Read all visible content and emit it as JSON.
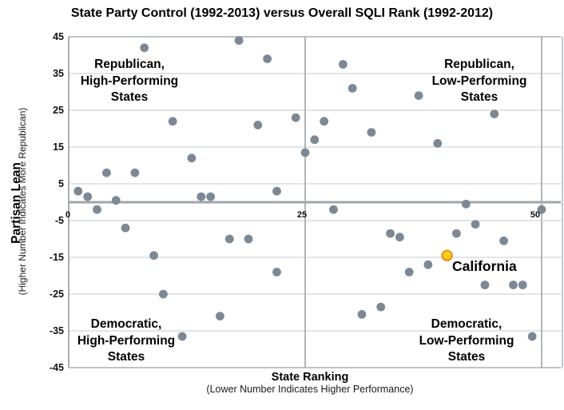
{
  "chart_data": {
    "type": "scatter",
    "title": "State Party Control (1992-2013) versus Overall SQLI Rank (1992-2012)",
    "xlabel": "State Ranking",
    "xlabel_note": "(Lower Number Indicates Higher Performance)",
    "ylabel": "Partisan Lean",
    "ylabel_note": "(Higher Number Indicates More Republican)",
    "xlim": [
      0,
      52
    ],
    "ylim": [
      -45,
      45
    ],
    "x_ticks": [
      0,
      25,
      50
    ],
    "y_ticks": [
      45,
      35,
      25,
      15,
      5,
      -5,
      -15,
      -25,
      -35,
      -45
    ],
    "grid": true,
    "legend": "none",
    "quadrant_labels": [
      {
        "id": "top-left",
        "lines": [
          "Republican,",
          "High-Performing",
          "States"
        ]
      },
      {
        "id": "top-right",
        "lines": [
          "Republican,",
          "Low-Performing",
          "States"
        ]
      },
      {
        "id": "bottom-left",
        "lines": [
          "Democratic,",
          "High-Performing",
          "States"
        ]
      },
      {
        "id": "bottom-right",
        "lines": [
          "Democratic,",
          "Low-Performing",
          "States"
        ]
      }
    ],
    "series": [
      {
        "name": "States",
        "marker": "circle",
        "color": "#7C8995",
        "marker_radius": 5.4,
        "points": [
          [
            1,
            3
          ],
          [
            2,
            1.5
          ],
          [
            3,
            -2
          ],
          [
            4,
            8
          ],
          [
            5,
            0.5
          ],
          [
            6,
            -7
          ],
          [
            7,
            8
          ],
          [
            8,
            42
          ],
          [
            9,
            -14.5
          ],
          [
            10,
            -25
          ],
          [
            11,
            22
          ],
          [
            12,
            -36.5
          ],
          [
            13,
            12
          ],
          [
            14,
            1.5
          ],
          [
            15,
            1.5
          ],
          [
            16,
            -31
          ],
          [
            17,
            -10
          ],
          [
            18,
            44
          ],
          [
            19,
            -10
          ],
          [
            20,
            21
          ],
          [
            21,
            39
          ],
          [
            22,
            3
          ],
          [
            22,
            -19
          ],
          [
            24,
            23
          ],
          [
            25,
            13.5
          ],
          [
            26,
            17
          ],
          [
            27,
            22
          ],
          [
            28,
            -2
          ],
          [
            29,
            37.5
          ],
          [
            30,
            31
          ],
          [
            31,
            -30.5
          ],
          [
            32,
            19
          ],
          [
            33,
            -28.5
          ],
          [
            34,
            -8.5
          ],
          [
            35,
            -9.5
          ],
          [
            36,
            -19
          ],
          [
            37,
            29
          ],
          [
            38,
            -17
          ],
          [
            39,
            16
          ],
          [
            41,
            -8.5
          ],
          [
            42,
            -0.5
          ],
          [
            43,
            -6
          ],
          [
            44,
            -22.5
          ],
          [
            45,
            24
          ],
          [
            46,
            -10.5
          ],
          [
            47,
            -22.5
          ],
          [
            48,
            -22.5
          ],
          [
            49,
            -36.5
          ],
          [
            50,
            -2
          ]
        ]
      },
      {
        "name": "California",
        "marker": "circle-highlight",
        "color": "#F28E1D",
        "color_inner": "#FFD21F",
        "marker_radius": 6.5,
        "points": [
          [
            40,
            -14.5
          ]
        ]
      }
    ],
    "annotation": {
      "text": "California",
      "x": 40,
      "y": -14.5
    }
  },
  "colors": {
    "background": "#FFFFFF",
    "grid_light": "#C7CACD",
    "axis_line": "#A8ADB2",
    "zero_line": "#9EA5AC",
    "dot_gray": "#7C8995",
    "california_outer": "#F28E1D",
    "california_inner": "#FFD21F",
    "text": "#000000"
  }
}
